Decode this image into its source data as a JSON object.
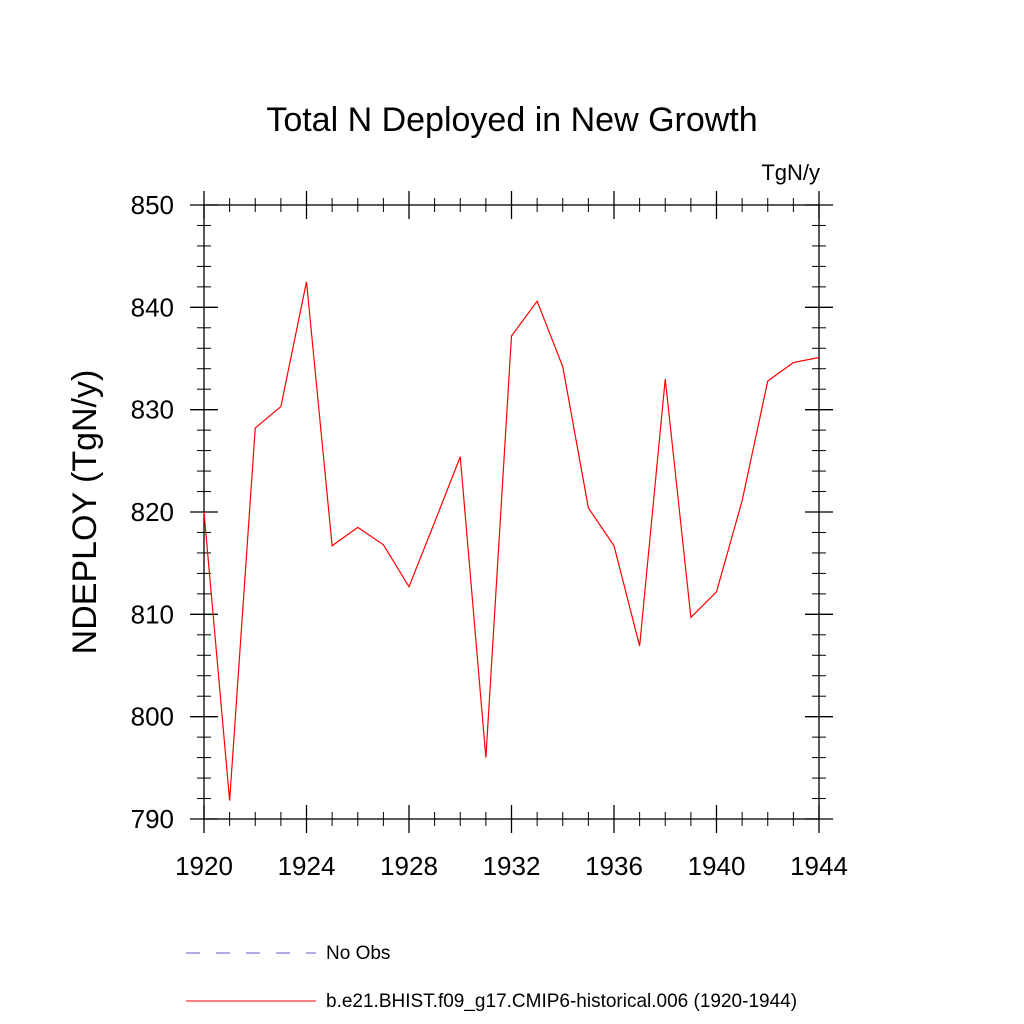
{
  "chart_data": {
    "type": "line",
    "title": "Total N Deployed in New Growth",
    "units": "TgN/y",
    "ylabel": "NDEPLOY  (TgN/y)",
    "xlabel": "",
    "xlim": [
      1920,
      1944
    ],
    "ylim": [
      790,
      850
    ],
    "xticks": [
      1920,
      1924,
      1928,
      1932,
      1936,
      1940,
      1944
    ],
    "yticks": [
      790,
      800,
      810,
      820,
      830,
      840,
      850
    ],
    "colors": {
      "series": "#ff0000",
      "obs": "#6a5acd",
      "axis": "#000000"
    },
    "series": [
      {
        "name": "b.e21.BHIST.f09_g17.CMIP6-historical.006 (1920-1944)",
        "x": [
          1920,
          1921,
          1922,
          1923,
          1924,
          1925,
          1926,
          1927,
          1928,
          1929,
          1930,
          1931,
          1932,
          1933,
          1934,
          1935,
          1936,
          1937,
          1938,
          1939,
          1940,
          1941,
          1942,
          1943,
          1944
        ],
        "y": [
          820.0,
          791.8,
          828.2,
          830.3,
          842.5,
          816.7,
          818.5,
          816.8,
          812.7,
          819.0,
          825.4,
          796.0,
          837.2,
          840.6,
          834.2,
          820.4,
          816.7,
          806.9,
          833.0,
          809.7,
          812.2,
          821.1,
          832.8,
          834.6,
          835.1
        ]
      }
    ],
    "legend": [
      {
        "label": "No Obs",
        "style": "dashed",
        "color": "#6a5acd"
      },
      {
        "label": "b.e21.BHIST.f09_g17.CMIP6-historical.006 (1920-1944)",
        "style": "solid",
        "color": "#ff0000"
      }
    ]
  }
}
